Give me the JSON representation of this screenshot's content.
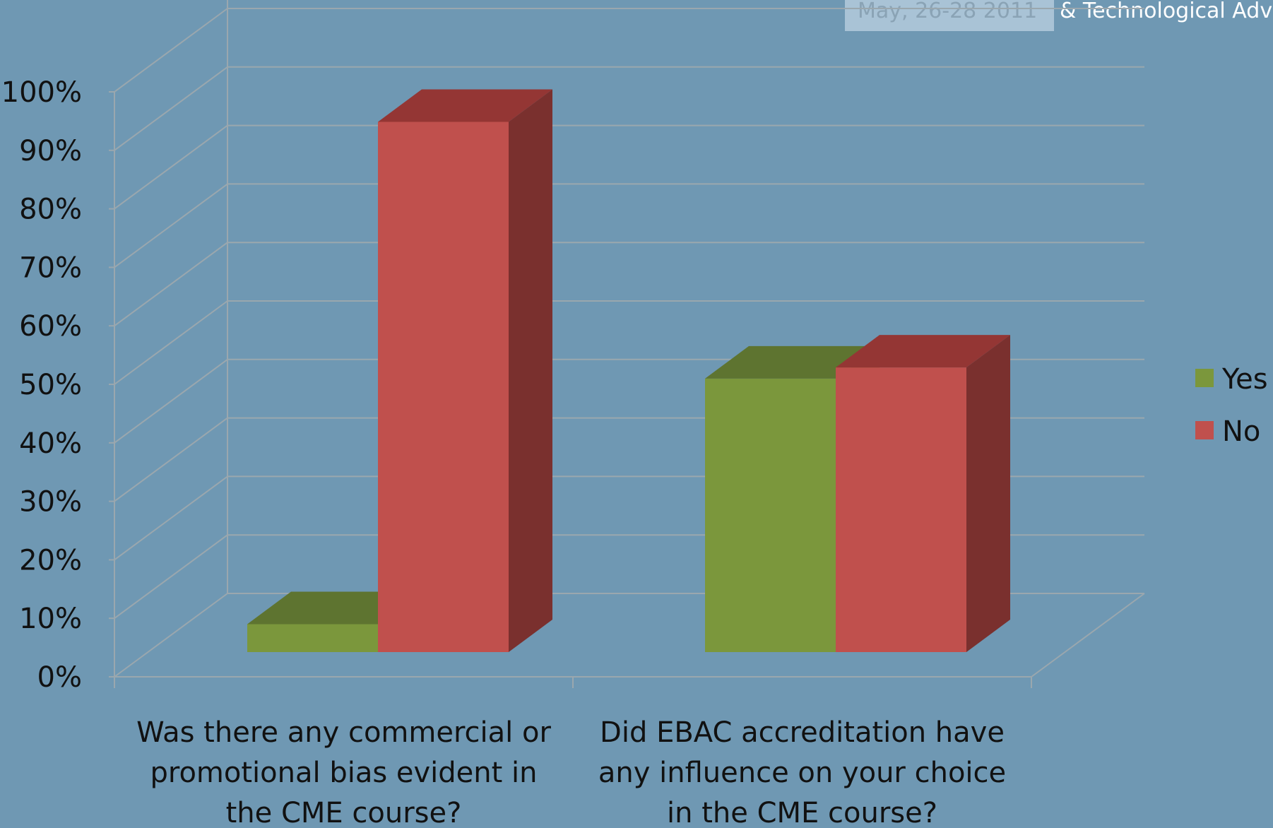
{
  "header": {
    "date_text": "May, 26-28 2011",
    "tagline": "& Technological Advanc"
  },
  "chart_data": {
    "type": "bar",
    "style": "3d-clustered-column",
    "categories": [
      [
        "Was there any commercial or",
        "promotional bias evident in",
        "the CME course?"
      ],
      [
        "Did EBAC accreditation have",
        "any influence on your choice",
        "in the CME course?"
      ]
    ],
    "series": [
      {
        "name": "Yes",
        "color": "#7b973c",
        "top_color": "#5e7430",
        "side_color": "#566c2a",
        "values": [
          5,
          49
        ]
      },
      {
        "name": "No",
        "color": "#c0504d",
        "top_color": "#943634",
        "side_color": "#7a302e",
        "values": [
          95,
          51
        ]
      }
    ],
    "y_ticks": [
      "0%",
      "10%",
      "20%",
      "30%",
      "40%",
      "50%",
      "60%",
      "70%",
      "80%",
      "90%",
      "100%"
    ],
    "ylim": [
      0,
      100
    ],
    "legend_position": "right",
    "grid": true
  }
}
